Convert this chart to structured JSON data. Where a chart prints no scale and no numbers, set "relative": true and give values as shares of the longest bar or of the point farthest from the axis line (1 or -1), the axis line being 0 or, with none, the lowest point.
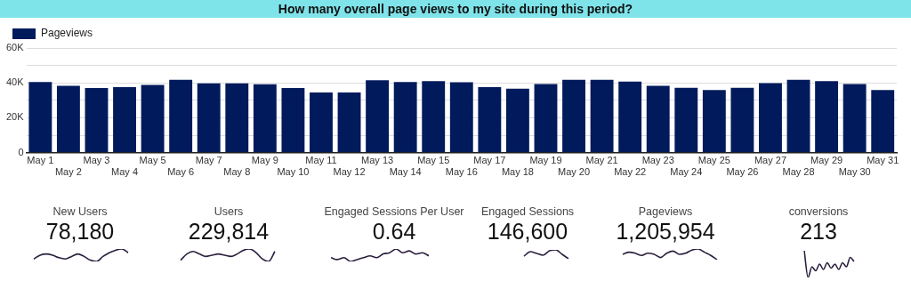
{
  "chart_data": [
    {
      "type": "bar",
      "title": "How many overall page views to my site during this period?",
      "categories": [
        "May 1",
        "May 2",
        "May 3",
        "May 4",
        "May 5",
        "May 6",
        "May 7",
        "May 8",
        "May 9",
        "May 10",
        "May 11",
        "May 12",
        "May 13",
        "May 14",
        "May 15",
        "May 16",
        "May 17",
        "May 18",
        "May 19",
        "May 20",
        "May 21",
        "May 22",
        "May 23",
        "May 24",
        "May 25",
        "May 26",
        "May 27",
        "May 28",
        "May 29",
        "May 30",
        "May 31"
      ],
      "series": [
        {
          "name": "Pageviews",
          "color": "#001a5c",
          "values": [
            40500,
            38300,
            37000,
            37500,
            38800,
            41800,
            39700,
            39700,
            39200,
            37000,
            34500,
            34500,
            41500,
            40500,
            41000,
            40300,
            37500,
            36700,
            39300,
            41800,
            41800,
            40700,
            38300,
            37200,
            35900,
            37200,
            39800,
            41800,
            41000,
            39300,
            35900
          ]
        }
      ],
      "ylim": [
        0,
        60000
      ],
      "yticks": [
        0,
        {
          "value": 10000,
          "label": null
        },
        {
          "value": 20000,
          "label": "20K"
        },
        {
          "value": 30000,
          "label": null
        },
        {
          "value": 40000,
          "label": "40K"
        },
        {
          "value": 50000,
          "label": null
        },
        {
          "value": 60000,
          "label": "60K"
        }
      ],
      "grid": "y",
      "legend": "top left"
    },
    {
      "type": "other",
      "title": "New Users",
      "annotations": [
        "78,180"
      ]
    },
    {
      "type": "line",
      "relative": true,
      "categories": [
        null,
        null,
        null,
        null,
        null,
        null,
        null,
        null,
        null,
        null,
        null,
        null,
        null,
        null,
        null,
        null
      ],
      "series": [
        {
          "color": "#2b1f3d",
          "values": [
            0.2,
            0.5,
            0.6,
            0.5,
            0.3,
            0.2,
            0.4,
            0.6,
            0.4,
            0.1,
            0,
            0.4,
            0.7,
            0.9,
            1,
            0.7
          ]
        }
      ]
    },
    {
      "type": "other",
      "title": "Users",
      "annotations": [
        "229,814"
      ]
    },
    {
      "type": "line",
      "relative": true,
      "categories": [
        null,
        null,
        null,
        null,
        null,
        null,
        null,
        null,
        null,
        null,
        null,
        null,
        null,
        null,
        null,
        null
      ],
      "series": [
        {
          "color": "#2b1f3d",
          "values": [
            0.1,
            0.6,
            0.8,
            0.6,
            0.4,
            0.5,
            0.6,
            0.5,
            0.4,
            0.6,
            0.9,
            1,
            0.7,
            0.2,
            0,
            0.8
          ]
        }
      ]
    },
    {
      "type": "other",
      "title": "Engaged Sessions Per User",
      "annotations": [
        "0.64"
      ]
    },
    {
      "type": "line",
      "relative": true,
      "categories": [
        null,
        null,
        null,
        null,
        null,
        null,
        null,
        null,
        null,
        null,
        null,
        null,
        null,
        null,
        null,
        null
      ],
      "series": [
        {
          "color": "#2b1f3d",
          "values": [
            0.3,
            0.15,
            0.3,
            0,
            0.15,
            0.3,
            0.45,
            0.3,
            0.6,
            0.7,
            1,
            0.7,
            0.85,
            0.6,
            0.7,
            0.45
          ]
        }
      ]
    },
    {
      "type": "other",
      "title": "Engaged Sessions",
      "annotations": [
        "146,600"
      ]
    },
    {
      "type": "line",
      "relative": true,
      "categories": [
        null,
        null,
        null,
        null,
        null,
        null,
        null,
        null
      ],
      "series": [
        {
          "color": "#2b1f3d",
          "values": [
            0.3,
            0.8,
            0.6,
            0.4,
            0.9,
            1,
            0.5,
            0
          ]
        }
      ]
    },
    {
      "type": "other",
      "title": "Pageviews",
      "annotations": [
        "1,205,954"
      ]
    },
    {
      "type": "line",
      "relative": true,
      "categories": [
        null,
        null,
        null,
        null,
        null,
        null,
        null,
        null,
        null,
        null,
        null,
        null,
        null,
        null,
        null,
        null
      ],
      "series": [
        {
          "color": "#2b1f3d",
          "values": [
            0.5,
            0.7,
            0.6,
            0.4,
            0.6,
            0.5,
            0.2,
            0.6,
            0.8,
            0.5,
            0.6,
            0.9,
            1,
            0.7,
            0.4,
            0
          ]
        }
      ]
    },
    {
      "type": "other",
      "title": "conversions",
      "annotations": [
        "213"
      ]
    },
    {
      "type": "line",
      "relative": true,
      "categories": [
        null,
        null,
        null,
        null,
        null,
        null,
        null,
        null,
        null,
        null,
        null,
        null,
        null,
        null
      ],
      "series": [
        {
          "color": "#2b1f3d",
          "values": [
            1,
            0,
            0.4,
            0.25,
            0.5,
            0.3,
            0.55,
            0.35,
            0.5,
            0.3,
            0.55,
            0.4,
            0.75,
            0.6
          ]
        }
      ]
    }
  ]
}
